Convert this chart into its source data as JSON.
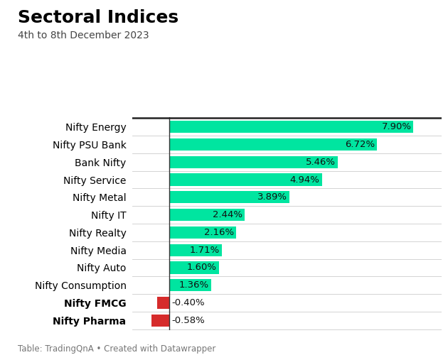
{
  "title": "Sectoral Indices",
  "subtitle": "4th to 8th December 2023",
  "footer": "Table: TradingQnA • Created with Datawrapper",
  "categories": [
    "Nifty Energy",
    "Nifty PSU Bank",
    "Bank Nifty",
    "Nifty Service",
    "Nifty Metal",
    "Nifty IT",
    "Nifty Realty",
    "Nifty Media",
    "Nifty Auto",
    "Nifty Consumption",
    "Nifty FMCG",
    "Nifty Pharma"
  ],
  "values": [
    7.9,
    6.72,
    5.46,
    4.94,
    3.89,
    2.44,
    2.16,
    1.71,
    1.6,
    1.36,
    -0.4,
    -0.58
  ],
  "positive_color": "#00e5a0",
  "negative_color": "#d62b2b",
  "background_color": "#ffffff",
  "label_color": "#000000",
  "title_fontsize": 18,
  "subtitle_fontsize": 10,
  "bar_label_fontsize": 9.5,
  "category_fontsize": 10,
  "footer_fontsize": 8.5,
  "xlim": [
    -1.2,
    8.8
  ]
}
